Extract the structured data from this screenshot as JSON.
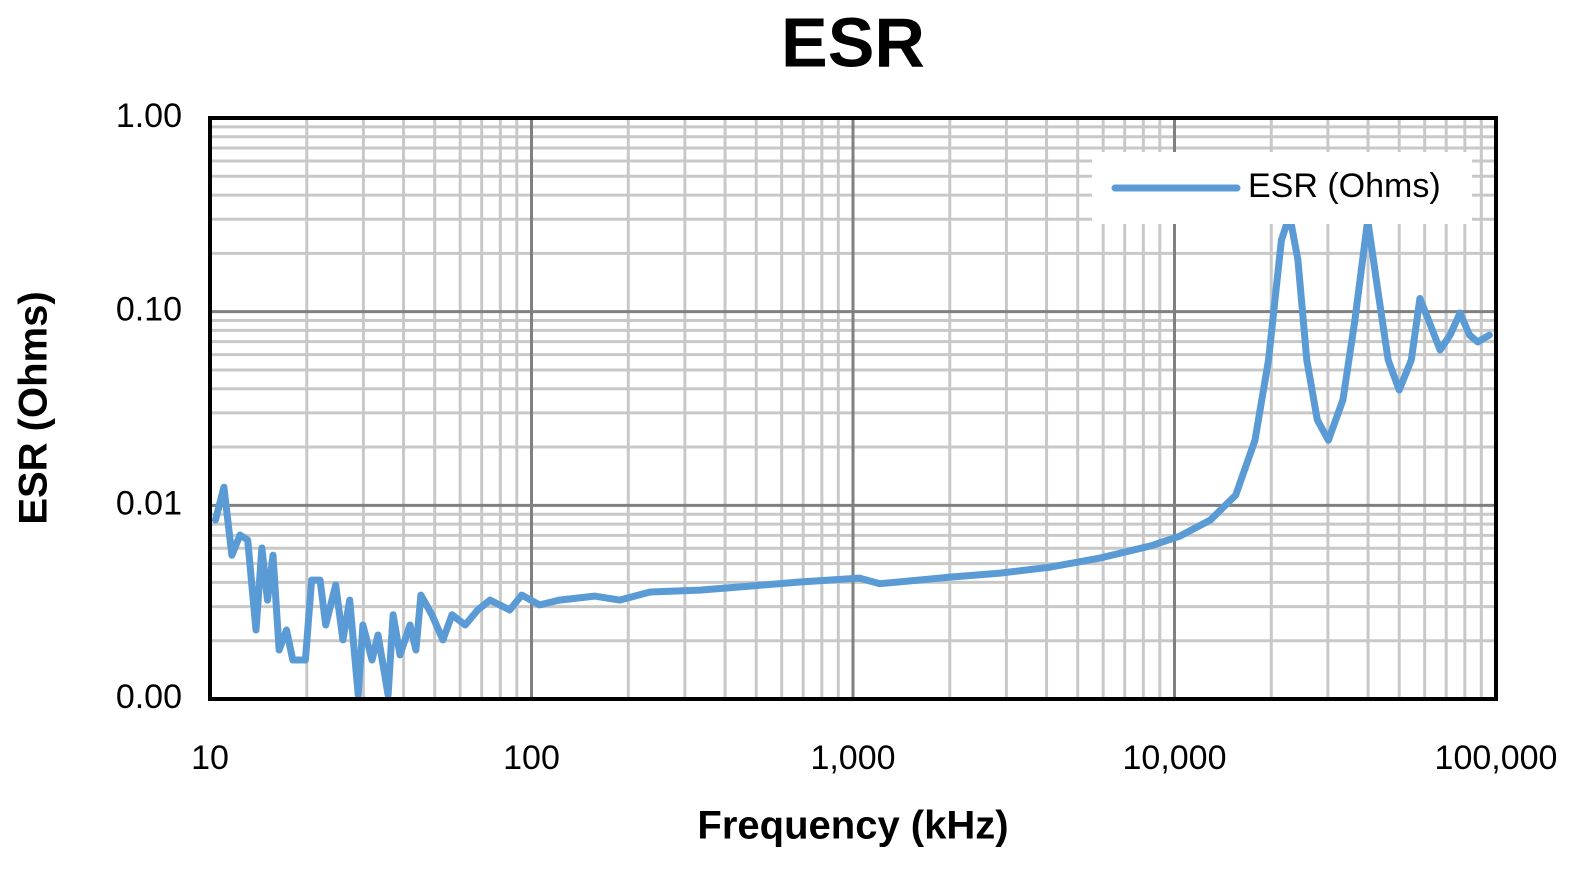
{
  "chart_data": {
    "type": "line",
    "title": "ESR",
    "x_label": "Frequency (kHz)",
    "y_label": "ESR (Ohms)",
    "x_log": true,
    "y_log": true,
    "grid": true,
    "minor_grid": true,
    "legend": "upper right",
    "xlim": [
      10,
      100000
    ],
    "ylim": [
      0.001,
      1
    ],
    "xticks": [
      10,
      100,
      {
        "value": 1000,
        "label": "1,000"
      },
      {
        "value": 10000,
        "label": "10,000"
      },
      {
        "value": 100000,
        "label": "100,000"
      }
    ],
    "yticks": [
      {
        "value": 0.001,
        "label": "0.00"
      },
      {
        "value": 0.01,
        "label": "0.01"
      },
      {
        "value": 0.1,
        "label": "0.10"
      },
      {
        "value": 1,
        "label": "1.00"
      }
    ],
    "x": [
      10.4,
      11.05,
      11.7,
      12.4,
      13.1,
      13.9,
      14.5,
      15.1,
      15.7,
      16.4,
      17.3,
      18.1,
      19.8,
      20.7,
      22.0,
      22.9,
      24.6,
      25.9,
      27.2,
      28.9,
      29.9,
      31.9,
      33.3,
      35.8,
      37.1,
      39.0,
      41.9,
      43.7,
      45.3,
      49.0,
      53.0,
      56.6,
      62.2,
      68.0,
      74.3,
      85.6,
      93.2,
      106,
      122,
      157,
      188,
      234,
      334,
      478,
      683,
      1048,
      1212,
      2006,
      2872,
      4112,
      5890,
      8430,
      10430,
      12930,
      15500,
      17800,
      19600,
      21500,
      22800,
      24200,
      25800,
      27800,
      30100,
      33400,
      36400,
      39900,
      42900,
      46200,
      50000,
      54500,
      58000,
      62500,
      67000,
      72000,
      77300,
      82800,
      87700,
      95300
    ],
    "series": [
      {
        "name": "ESR (Ohms)",
        "color": "#5b9bd5",
        "values": [
          0.0084,
          0.0124,
          0.00553,
          0.00703,
          0.00662,
          0.00227,
          0.00602,
          0.00324,
          0.00553,
          0.00179,
          0.00227,
          0.00159,
          0.00159,
          0.00411,
          0.00411,
          0.00241,
          0.00388,
          0.00202,
          0.00324,
          0.00105,
          0.00241,
          0.00159,
          0.00214,
          0.00105,
          0.00272,
          0.00169,
          0.00241,
          0.00179,
          0.00344,
          0.00272,
          0.00202,
          0.00272,
          0.00241,
          0.00288,
          0.00324,
          0.00288,
          0.00344,
          0.00306,
          0.00324,
          0.0034,
          0.00324,
          0.00357,
          0.00365,
          0.00383,
          0.00402,
          0.00421,
          0.00394,
          0.00426,
          0.00447,
          0.0048,
          0.00535,
          0.00617,
          0.00695,
          0.0084,
          0.0113,
          0.0217,
          0.0562,
          0.234,
          0.315,
          0.185,
          0.0562,
          0.0276,
          0.0217,
          0.035,
          0.0905,
          0.297,
          0.129,
          0.0562,
          0.0394,
          0.0562,
          0.117,
          0.0853,
          0.0634,
          0.0757,
          0.0984,
          0.0757,
          0.0697,
          0.0757
        ]
      }
    ]
  }
}
